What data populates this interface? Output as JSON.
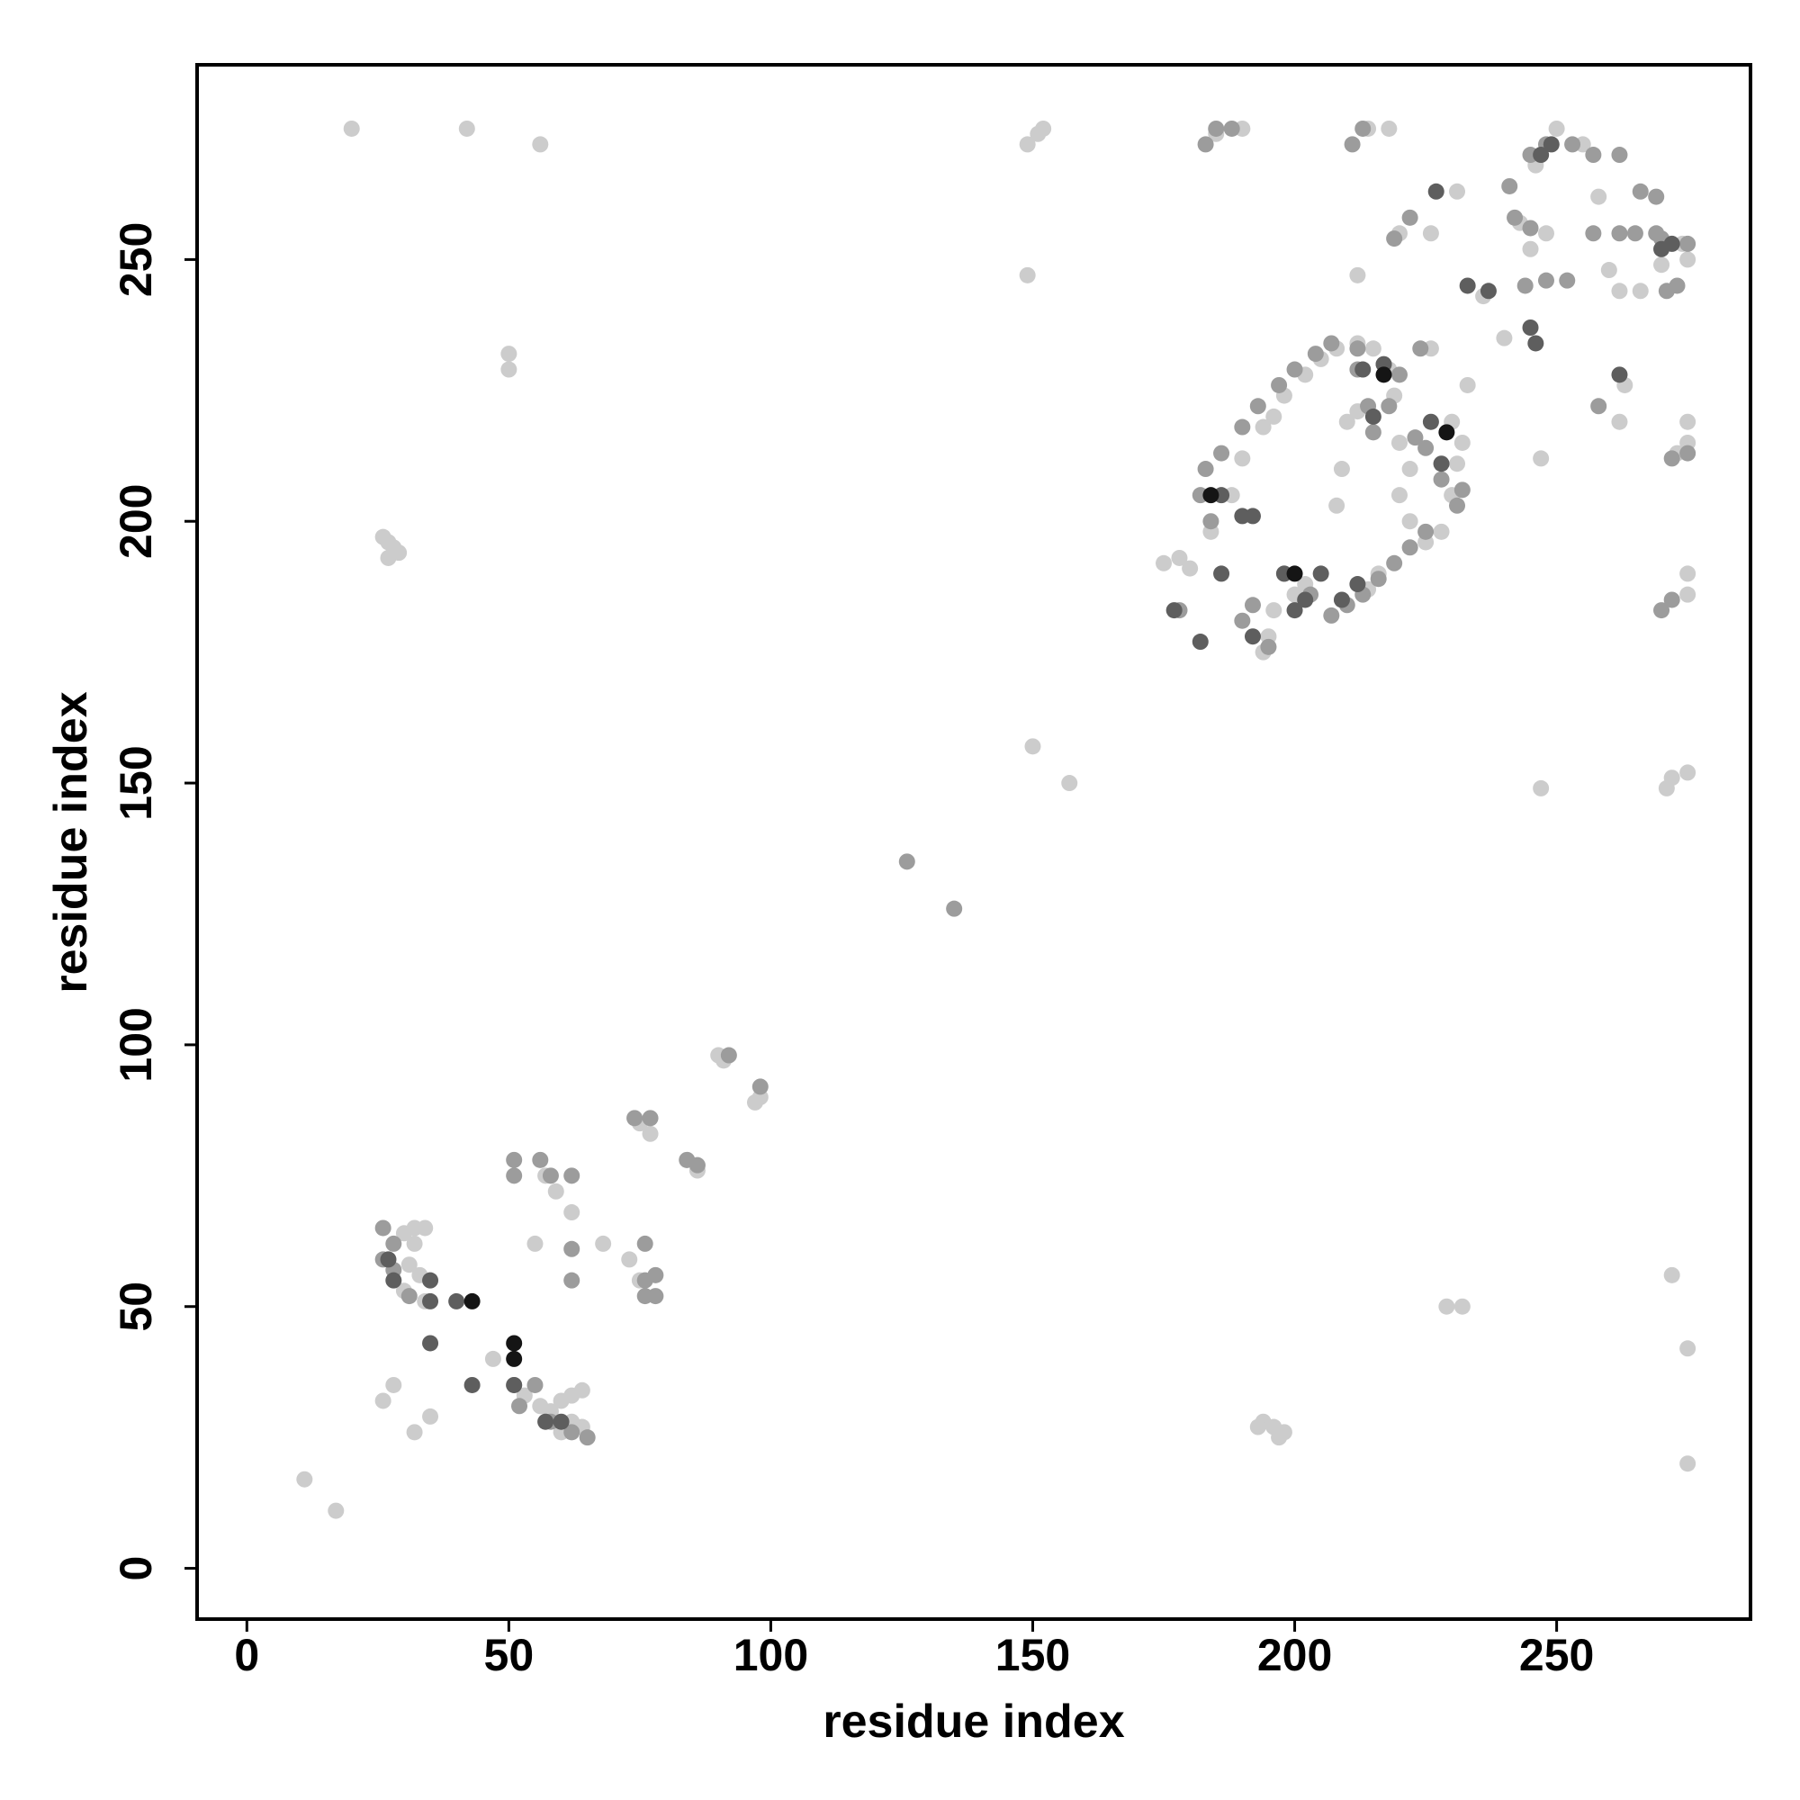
{
  "chart_data": {
    "type": "scatter",
    "x_label": "residue index",
    "y_label": "residue index",
    "xlim": [
      -9.5,
      287
    ],
    "ylim": [
      -9.7,
      287.2
    ],
    "xticks": [
      0,
      50,
      100,
      150,
      200,
      250
    ],
    "yticks": [
      0,
      50,
      100,
      150,
      200,
      250
    ],
    "series": [
      {
        "color": "#cccccc",
        "x": [
          20,
          42,
          56,
          11,
          17,
          50,
          50,
          26,
          27,
          28,
          27,
          29,
          149,
          151,
          152,
          149,
          150,
          157,
          247,
          272,
          275,
          271,
          229,
          232,
          272,
          275,
          275,
          194,
          196,
          197,
          198,
          193,
          30,
          32,
          31,
          33,
          30,
          34,
          32,
          34,
          26,
          28,
          32,
          35,
          47,
          53,
          56,
          58,
          60,
          62,
          64,
          62,
          60,
          64,
          55,
          57,
          59,
          62,
          68,
          73,
          75,
          75,
          77,
          84,
          86,
          90,
          91,
          97,
          98,
          175,
          178,
          180,
          184,
          188,
          190,
          194,
          196,
          198,
          202,
          205,
          208,
          212,
          215,
          218,
          219,
          220,
          222,
          220,
          222,
          225,
          228,
          230,
          231,
          232,
          230,
          212,
          210,
          209,
          208,
          195,
          194,
          196,
          200,
          202,
          214,
          216,
          212,
          220,
          226,
          226,
          231,
          233,
          236,
          240,
          243,
          245,
          248,
          246,
          250,
          255,
          258,
          260,
          262,
          263,
          262,
          247,
          266,
          270,
          274,
          275,
          275,
          275,
          273,
          275,
          275,
          185,
          190,
          214,
          218
        ],
        "values": [
          275,
          275,
          272,
          17,
          11,
          232,
          229,
          197,
          196,
          195,
          193,
          194,
          272,
          274,
          275,
          247,
          157,
          150,
          149,
          151,
          152,
          149,
          50,
          50,
          56,
          42,
          20,
          28,
          27,
          25,
          26,
          27,
          64,
          62,
          58,
          56,
          53,
          51,
          65,
          65,
          32,
          35,
          26,
          29,
          40,
          33,
          31,
          30,
          32,
          33,
          34,
          28,
          26,
          27,
          62,
          75,
          72,
          68,
          62,
          59,
          55,
          85,
          83,
          78,
          76,
          98,
          97,
          89,
          90,
          192,
          193,
          191,
          198,
          205,
          212,
          218,
          220,
          224,
          228,
          231,
          233,
          234,
          233,
          229,
          224,
          215,
          210,
          205,
          200,
          196,
          198,
          205,
          211,
          215,
          219,
          221,
          219,
          210,
          203,
          178,
          175,
          183,
          186,
          188,
          187,
          190,
          247,
          255,
          255,
          233,
          263,
          226,
          243,
          235,
          257,
          252,
          255,
          268,
          275,
          272,
          262,
          248,
          244,
          226,
          219,
          212,
          244,
          249,
          253,
          250,
          219,
          215,
          213,
          190,
          186,
          274,
          275,
          275,
          275
        ]
      },
      {
        "color": "#9c9c9c",
        "x": [
          26,
          28,
          26,
          28,
          31,
          51,
          51,
          56,
          58,
          62,
          62,
          62,
          76,
          76,
          76,
          78,
          78,
          74,
          77,
          84,
          86,
          92,
          98,
          51,
          52,
          55,
          58,
          62,
          65,
          126,
          135,
          178,
          184,
          182,
          183,
          186,
          190,
          193,
          197,
          200,
          204,
          207,
          212,
          217,
          220,
          214,
          215,
          223,
          228,
          232,
          231,
          225,
          222,
          219,
          216,
          213,
          210,
          207,
          203,
          198,
          192,
          190,
          195,
          212,
          218,
          225,
          224,
          222,
          219,
          245,
          248,
          253,
          257,
          262,
          266,
          269,
          270,
          275,
          273,
          271,
          241,
          244,
          248,
          252,
          257,
          262,
          265,
          269,
          272,
          275,
          270,
          272,
          183,
          185,
          188,
          211,
          213,
          258,
          242,
          245
        ],
        "values": [
          65,
          62,
          59,
          57,
          52,
          78,
          75,
          78,
          75,
          75,
          55,
          61,
          62,
          55,
          52,
          56,
          52,
          86,
          86,
          78,
          77,
          98,
          92,
          35,
          31,
          35,
          28,
          26,
          25,
          135,
          126,
          183,
          200,
          205,
          210,
          213,
          218,
          222,
          226,
          229,
          232,
          234,
          233,
          230,
          228,
          222,
          217,
          216,
          208,
          206,
          203,
          198,
          195,
          192,
          189,
          186,
          184,
          182,
          186,
          190,
          184,
          181,
          176,
          229,
          222,
          214,
          233,
          258,
          254,
          270,
          272,
          272,
          270,
          270,
          263,
          262,
          254,
          253,
          245,
          244,
          264,
          245,
          246,
          246,
          255,
          255,
          255,
          255,
          212,
          213,
          183,
          185,
          272,
          275,
          275,
          272,
          275,
          222,
          258,
          256
        ]
      },
      {
        "color": "#5e5e5e",
        "x": [
          27,
          28,
          35,
          35,
          40,
          35,
          43,
          51,
          57,
          60,
          182,
          177,
          186,
          190,
          186,
          192,
          198,
          202,
          205,
          209,
          212,
          213,
          215,
          217,
          226,
          228,
          227,
          233,
          237,
          245,
          246,
          262,
          249,
          247,
          270,
          272,
          200,
          192
        ],
        "values": [
          59,
          55,
          55,
          51,
          51,
          43,
          35,
          35,
          28,
          28,
          177,
          183,
          205,
          201,
          190,
          178,
          190,
          185,
          190,
          185,
          188,
          229,
          220,
          230,
          219,
          211,
          263,
          245,
          244,
          237,
          234,
          228,
          272,
          270,
          252,
          253,
          183,
          201
        ]
      },
      {
        "color": "#151515",
        "x": [
          43,
          51,
          51,
          184,
          229,
          200,
          217
        ],
        "values": [
          51,
          43,
          40,
          205,
          217,
          190,
          228
        ]
      }
    ]
  }
}
